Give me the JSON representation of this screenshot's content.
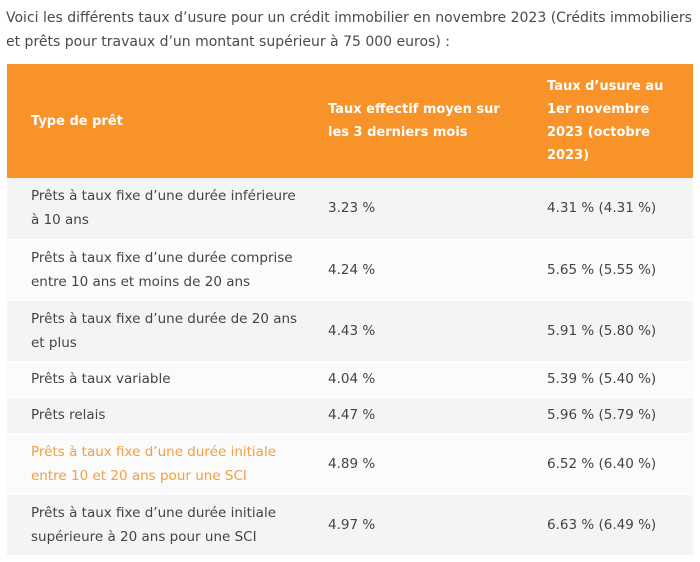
{
  "intro": "Voici les différents taux d’usure pour un crédit immobilier en novembre 2023 (Crédits immobiliers et prêts pour travaux d’un montant supérieur à 75 000 euros) :",
  "table": {
    "headers": [
      "Type de prêt",
      "Taux effectif moyen sur les 3 derniers mois",
      "Taux d’usure au 1er novembre 2023 (octobre 2023)"
    ],
    "rows": [
      [
        "Prêts à taux fixe d’une durée inférieure à 10 ans",
        "3.23 %",
        "4.31 % (4.31 %)"
      ],
      [
        "Prêts à taux fixe d’une durée comprise entre 10 ans et moins de 20 ans",
        "4.24 %",
        "5.65 % (5.55 %)"
      ],
      [
        "Prêts à taux fixe d’une durée de 20 ans et plus",
        "4.43 %",
        "5.91 % (5.80 %)"
      ],
      [
        "Prêts à taux variable",
        "4.04 %",
        "5.39 % (5.40 %)"
      ],
      [
        "Prêts relais",
        "4.47 %",
        "5.96 % (5.79 %)"
      ],
      [
        "Prêts à taux fixe d’une durée initiale entre 10 et 20 ans pour une SCI",
        "4.89 %",
        "6.52 % (6.40 %)"
      ],
      [
        "Prêts à taux fixe d’une durée initiale supérieure à 20 ans pour une SCI",
        "4.97 %",
        "6.63 % (6.49 %)"
      ]
    ]
  },
  "colors": {
    "header_bg": "#f8932a",
    "highlight_text": "#f0a040"
  }
}
